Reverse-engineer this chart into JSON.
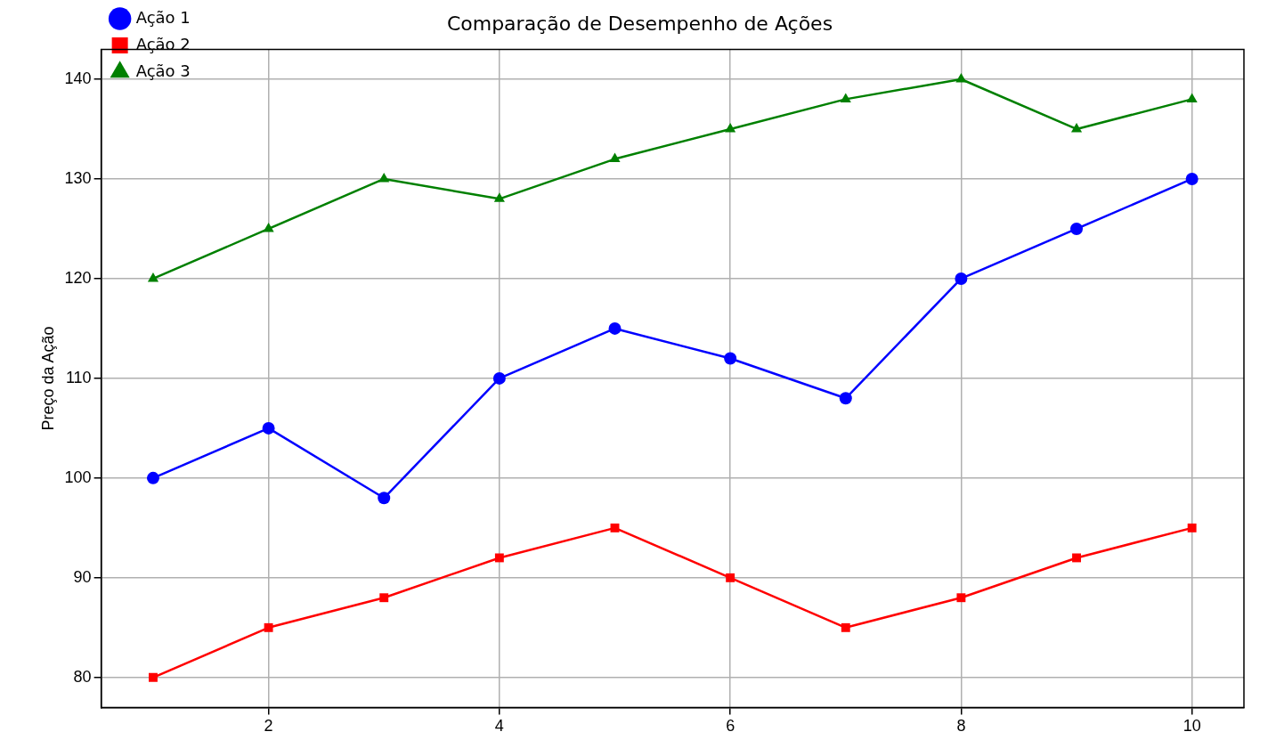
{
  "chart_data": {
    "type": "line",
    "title": "Comparação de Desempenho de Ações",
    "ylabel": "Preço da Ação",
    "x": [
      1,
      2,
      3,
      4,
      5,
      6,
      7,
      8,
      9,
      10
    ],
    "series": [
      {
        "name": "Ação 1",
        "color": "#0000ff",
        "marker": "circle",
        "values": [
          100,
          105,
          98,
          110,
          115,
          112,
          108,
          120,
          125,
          130
        ]
      },
      {
        "name": "Ação 2",
        "color": "#ff0000",
        "marker": "square",
        "values": [
          80,
          85,
          88,
          92,
          95,
          90,
          85,
          88,
          92,
          95
        ]
      },
      {
        "name": "Ação 3",
        "color": "#008000",
        "marker": "triangle",
        "values": [
          120,
          125,
          130,
          128,
          132,
          135,
          138,
          140,
          135,
          138
        ]
      }
    ],
    "xlim": [
      0.55,
      10.45
    ],
    "xticks": [
      2,
      4,
      6,
      8,
      10
    ],
    "ylim": [
      77,
      143
    ],
    "yticks": [
      80,
      90,
      100,
      110,
      120,
      130,
      140
    ],
    "grid": true,
    "legend": "top left",
    "line_style": "solid"
  }
}
